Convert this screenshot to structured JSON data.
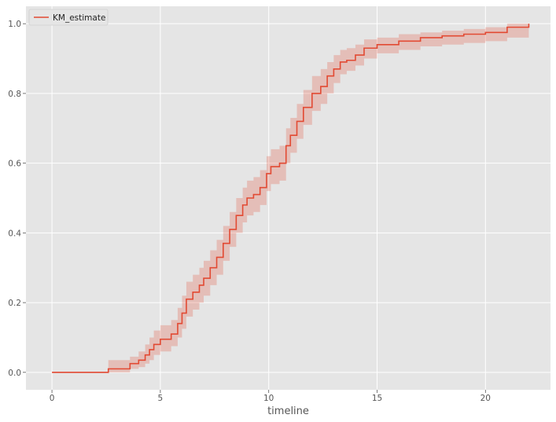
{
  "chart_data": {
    "type": "line",
    "title": "",
    "xlabel": "timeline",
    "ylabel": "",
    "xlim": [
      -1.2,
      23.0
    ],
    "ylim": [
      -0.05,
      1.05
    ],
    "xticks": [
      0,
      5,
      10,
      15,
      20
    ],
    "xtick_labels": [
      "0",
      "5",
      "10",
      "15",
      "20"
    ],
    "yticks": [
      0.0,
      0.2,
      0.4,
      0.6,
      0.8,
      1.0
    ],
    "ytick_labels": [
      "0.0",
      "0.2",
      "0.4",
      "0.6",
      "0.8",
      "1.0"
    ],
    "grid": true,
    "legend": {
      "position": "top-left",
      "entries": [
        "KM_estimate"
      ]
    },
    "colors": {
      "line": "#e24a33",
      "band": "#e24a33",
      "background": "#e5e5e5",
      "grid": "#ffffff"
    },
    "series": [
      {
        "name": "KM_estimate",
        "step": "post",
        "x": [
          0.0,
          2.5,
          2.6,
          3.6,
          4.0,
          4.3,
          4.5,
          4.7,
          5.0,
          5.5,
          5.8,
          6.0,
          6.2,
          6.5,
          6.8,
          7.0,
          7.3,
          7.6,
          7.9,
          8.2,
          8.5,
          8.8,
          9.0,
          9.3,
          9.6,
          9.9,
          10.1,
          10.5,
          10.8,
          11.0,
          11.3,
          11.6,
          12.0,
          12.4,
          12.7,
          13.0,
          13.3,
          13.6,
          14.0,
          14.4,
          15.0,
          16.0,
          17.0,
          18.0,
          19.0,
          20.0,
          21.0,
          22.0
        ],
        "y": [
          0.0,
          0.0,
          0.01,
          0.025,
          0.035,
          0.05,
          0.065,
          0.08,
          0.095,
          0.11,
          0.14,
          0.17,
          0.21,
          0.23,
          0.25,
          0.27,
          0.3,
          0.33,
          0.37,
          0.41,
          0.45,
          0.48,
          0.5,
          0.51,
          0.53,
          0.57,
          0.59,
          0.6,
          0.65,
          0.68,
          0.72,
          0.76,
          0.8,
          0.82,
          0.85,
          0.87,
          0.89,
          0.895,
          0.91,
          0.93,
          0.94,
          0.95,
          0.96,
          0.965,
          0.97,
          0.975,
          0.99,
          1.0
        ],
        "ci_lower": [
          0.0,
          0.0,
          0.0,
          0.01,
          0.015,
          0.025,
          0.035,
          0.05,
          0.06,
          0.075,
          0.1,
          0.125,
          0.16,
          0.18,
          0.2,
          0.22,
          0.25,
          0.28,
          0.32,
          0.36,
          0.4,
          0.43,
          0.45,
          0.46,
          0.48,
          0.52,
          0.54,
          0.55,
          0.6,
          0.63,
          0.67,
          0.71,
          0.75,
          0.77,
          0.8,
          0.83,
          0.855,
          0.865,
          0.88,
          0.9,
          0.915,
          0.925,
          0.935,
          0.94,
          0.945,
          0.95,
          0.96,
          0.97
        ],
        "ci_upper": [
          0.0,
          0.0,
          0.035,
          0.045,
          0.06,
          0.08,
          0.1,
          0.12,
          0.135,
          0.15,
          0.185,
          0.22,
          0.26,
          0.28,
          0.3,
          0.32,
          0.35,
          0.38,
          0.42,
          0.46,
          0.5,
          0.53,
          0.55,
          0.56,
          0.58,
          0.62,
          0.64,
          0.65,
          0.7,
          0.73,
          0.77,
          0.81,
          0.85,
          0.87,
          0.89,
          0.91,
          0.925,
          0.93,
          0.94,
          0.955,
          0.96,
          0.97,
          0.975,
          0.98,
          0.985,
          0.99,
          1.0,
          1.0
        ]
      }
    ]
  }
}
